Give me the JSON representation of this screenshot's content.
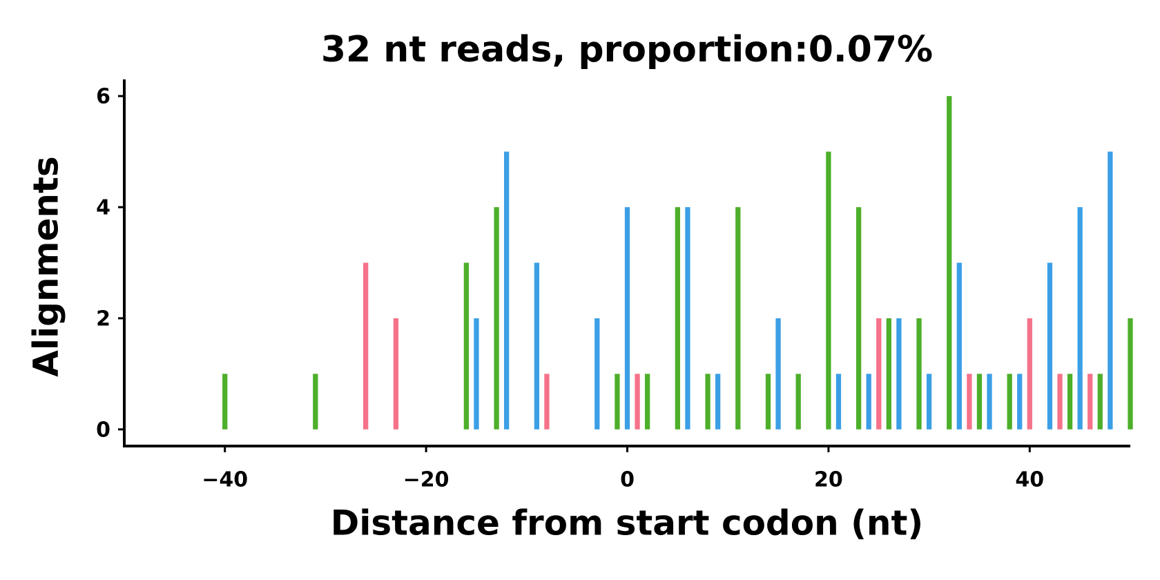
{
  "chart_data": {
    "type": "bar",
    "title": "32 nt reads, proportion:0.07%",
    "xlabel": "Distance from start codon (nt)",
    "ylabel": "Alignments",
    "series": [
      {
        "color": "#4daf2a",
        "x": [
          -40,
          -31,
          -16,
          -13,
          -1,
          2,
          5,
          8,
          11,
          14,
          17,
          20,
          23,
          26,
          29,
          32,
          35,
          38,
          44,
          47,
          50
        ],
        "values": [
          1,
          1,
          3,
          4,
          1,
          1,
          4,
          1,
          4,
          1,
          1,
          5,
          4,
          2,
          2,
          6,
          1,
          1,
          1,
          1,
          2
        ]
      },
      {
        "color": "#3b9fe6",
        "x": [
          -15,
          -12,
          -9,
          -3,
          0,
          6,
          9,
          15,
          21,
          24,
          27,
          30,
          33,
          36,
          39,
          42,
          45,
          48
        ],
        "values": [
          2,
          5,
          3,
          2,
          4,
          4,
          1,
          2,
          1,
          1,
          2,
          1,
          3,
          1,
          1,
          3,
          4,
          5
        ]
      },
      {
        "color": "#f5728a",
        "x": [
          -26,
          -23,
          -8,
          1,
          25,
          34,
          40,
          43,
          46
        ],
        "values": [
          3,
          2,
          1,
          1,
          2,
          1,
          2,
          1,
          1
        ]
      }
    ],
    "xlim": [
      -50,
      50
    ],
    "xticks": [
      {
        "value": -40,
        "label": "−40"
      },
      {
        "value": -20,
        "label": "−20"
      },
      0,
      20,
      40
    ],
    "ylim": [
      -0.3,
      6.3
    ],
    "yticks": [
      0,
      2,
      4,
      6
    ]
  }
}
